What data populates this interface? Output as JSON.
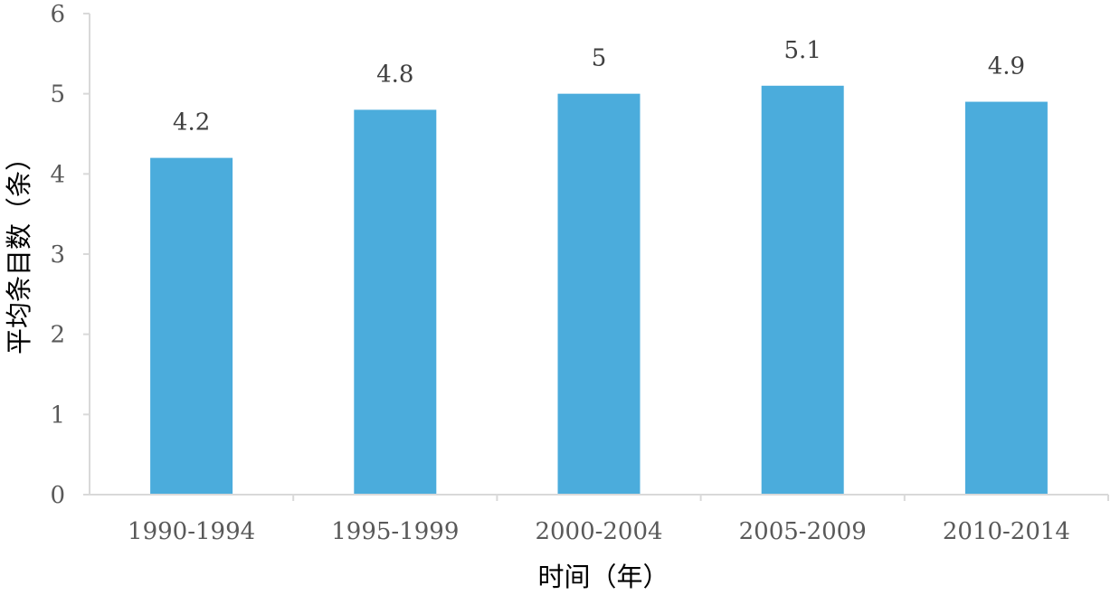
{
  "chart_data": {
    "type": "bar",
    "title": "",
    "categories": [
      "1990-1994",
      "1995-1999",
      "2000-2004",
      "2005-2009",
      "2010-2014"
    ],
    "values": [
      4.2,
      4.8,
      5,
      5.1,
      4.9
    ],
    "data_labels": [
      "4.2",
      "4.8",
      "5",
      "5.1",
      "4.9"
    ],
    "xlabel": "时间（年）",
    "ylabel": "平均条目数（条）",
    "ylim": [
      0,
      6
    ],
    "yticks": [
      0,
      1,
      2,
      3,
      4,
      5,
      6
    ],
    "ytick_labels": [
      "0",
      "1",
      "2",
      "3",
      "4",
      "5",
      "6"
    ],
    "grid": false,
    "legend": "none",
    "colors": {
      "bar": "#4BACDC",
      "axis": "#D9D9D9",
      "tick_text": "#595959",
      "data_label_text": "#404040",
      "axis_title_text": "#000000"
    }
  }
}
